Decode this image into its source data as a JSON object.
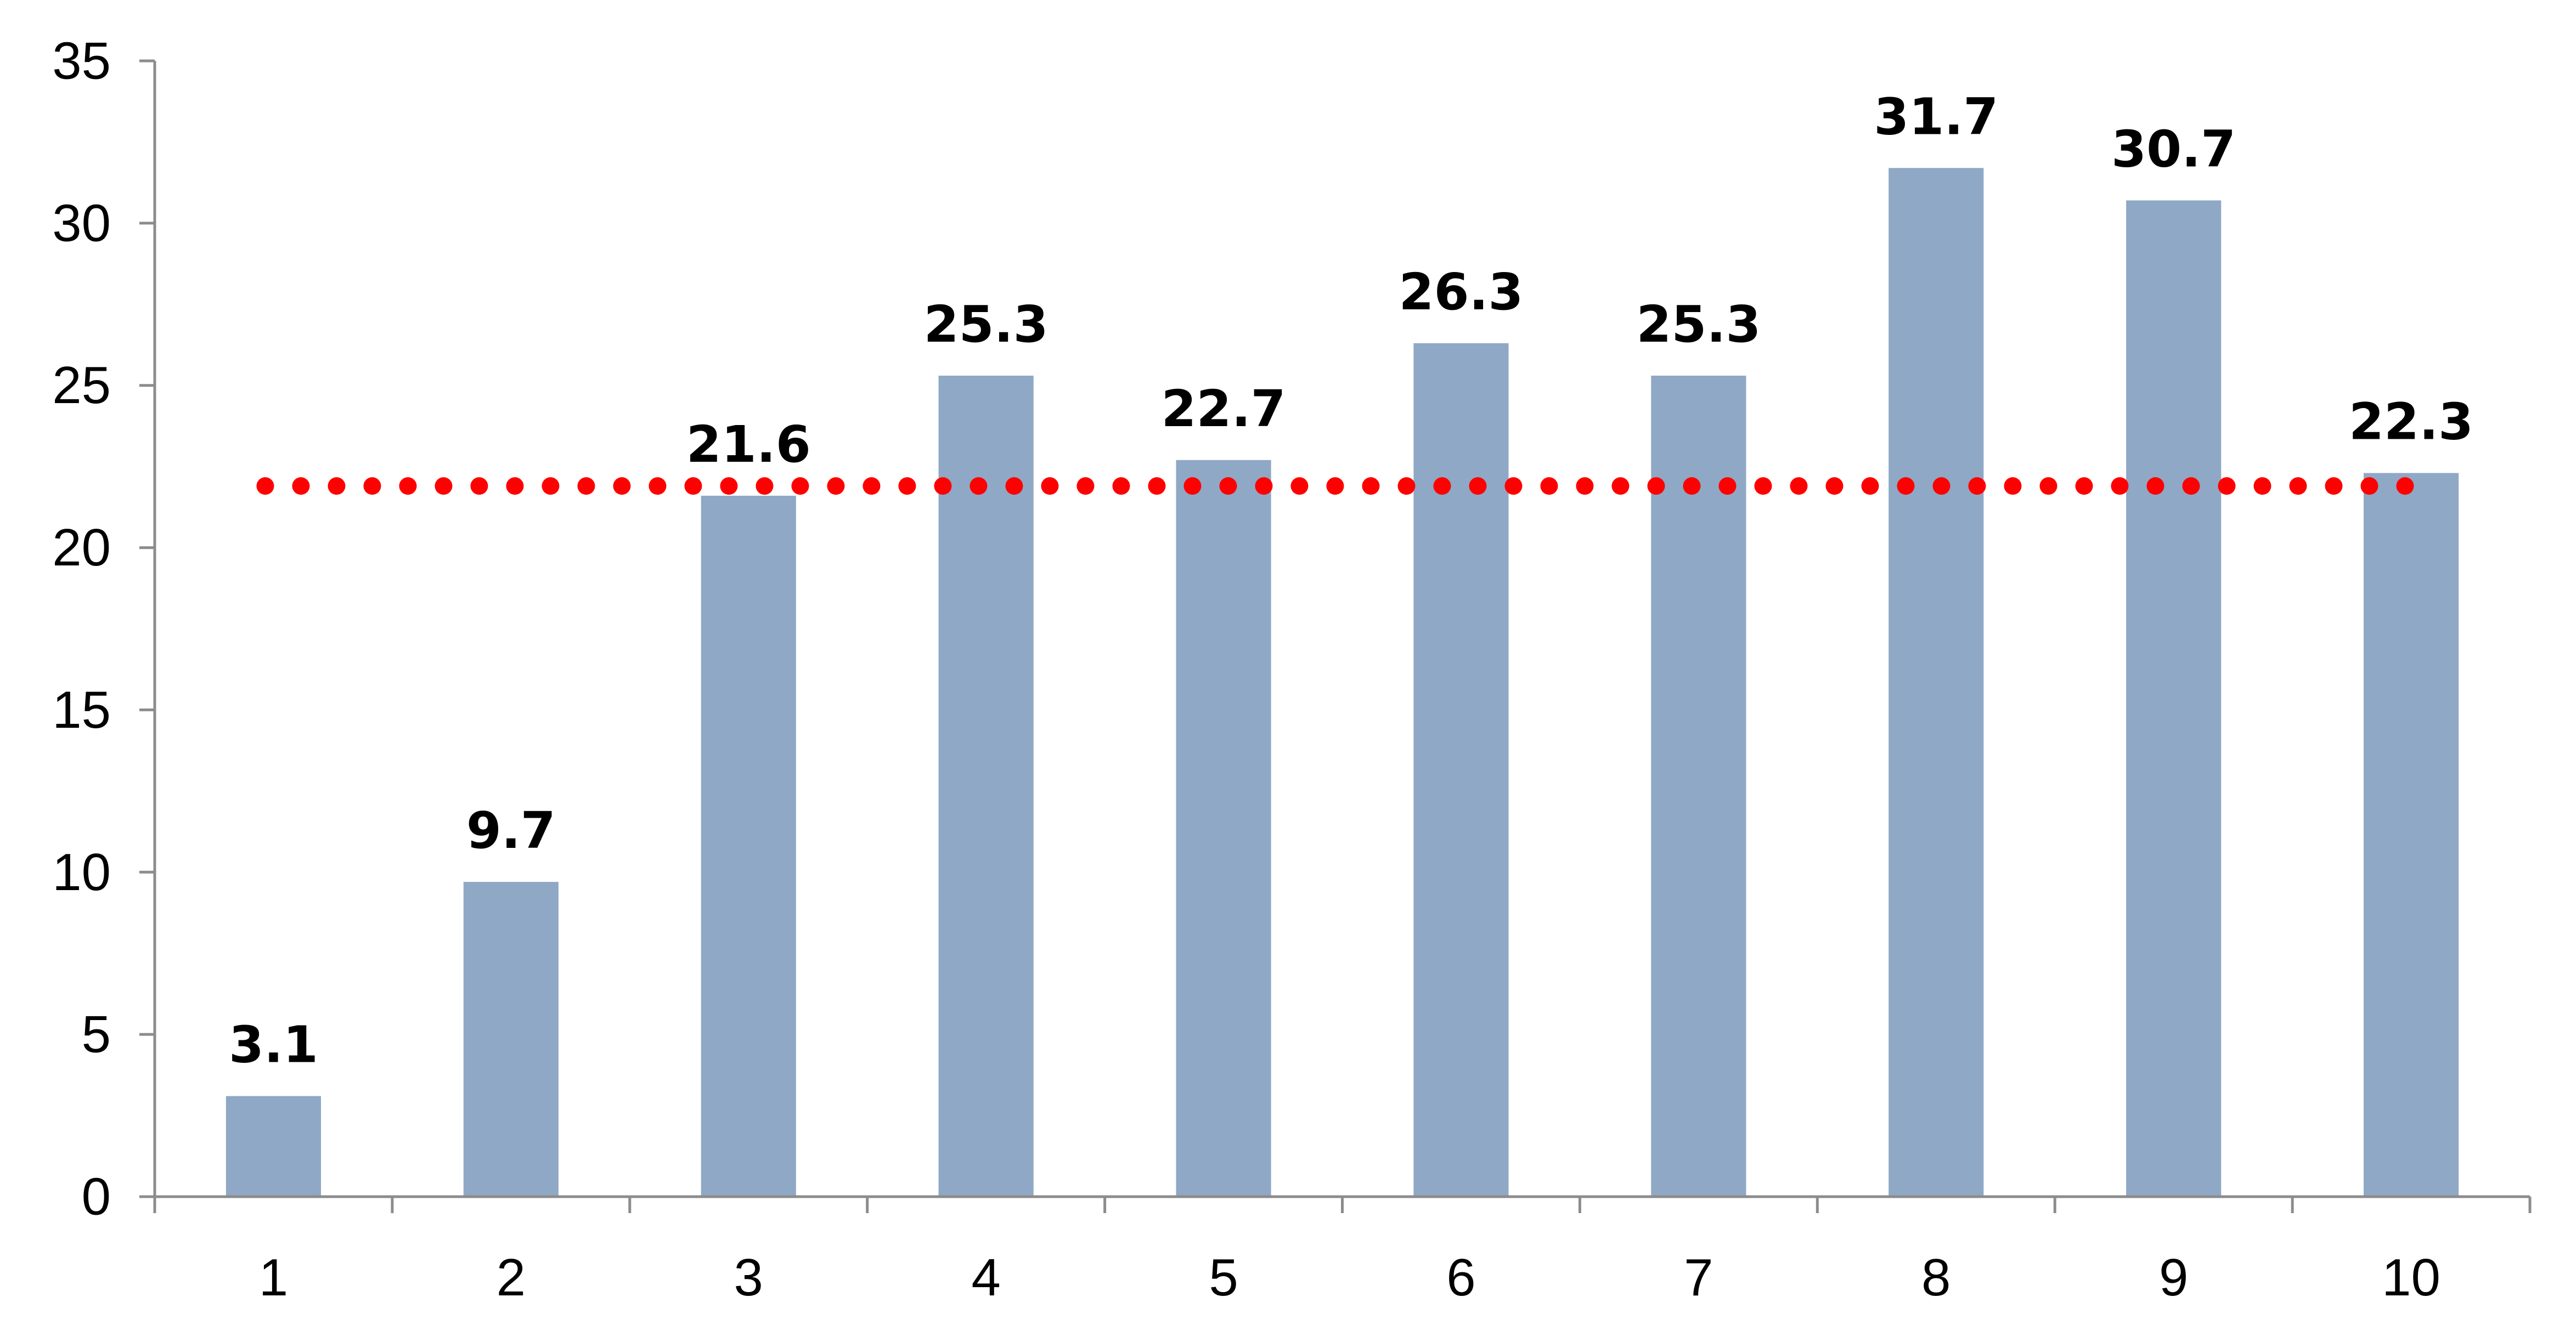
{
  "chart_data": {
    "type": "bar",
    "title": "",
    "xlabel": "",
    "ylabel": "",
    "categories": [
      "1",
      "2",
      "3",
      "4",
      "5",
      "6",
      "7",
      "8",
      "9",
      "10"
    ],
    "values": [
      3.1,
      9.7,
      21.6,
      25.3,
      22.7,
      26.3,
      25.3,
      31.7,
      30.7,
      22.3
    ],
    "data_labels": [
      "3.1",
      "9.7",
      "21.6",
      "25.3",
      "22.7",
      "26.3",
      "25.3",
      "31.7",
      "30.7",
      "22.3"
    ],
    "ylim": [
      0,
      35
    ],
    "yticks": [
      0,
      5,
      10,
      15,
      20,
      25,
      30,
      35
    ],
    "ytick_labels": [
      "0",
      "5",
      "10",
      "15",
      "20",
      "25",
      "30",
      "35"
    ],
    "reference_line": {
      "value": 21.9,
      "style": "dotted",
      "color": "#ff0000"
    },
    "bar_color": "#8fa8c5",
    "axis_color": "#8c8c8c",
    "grid": false,
    "legend": "none"
  }
}
